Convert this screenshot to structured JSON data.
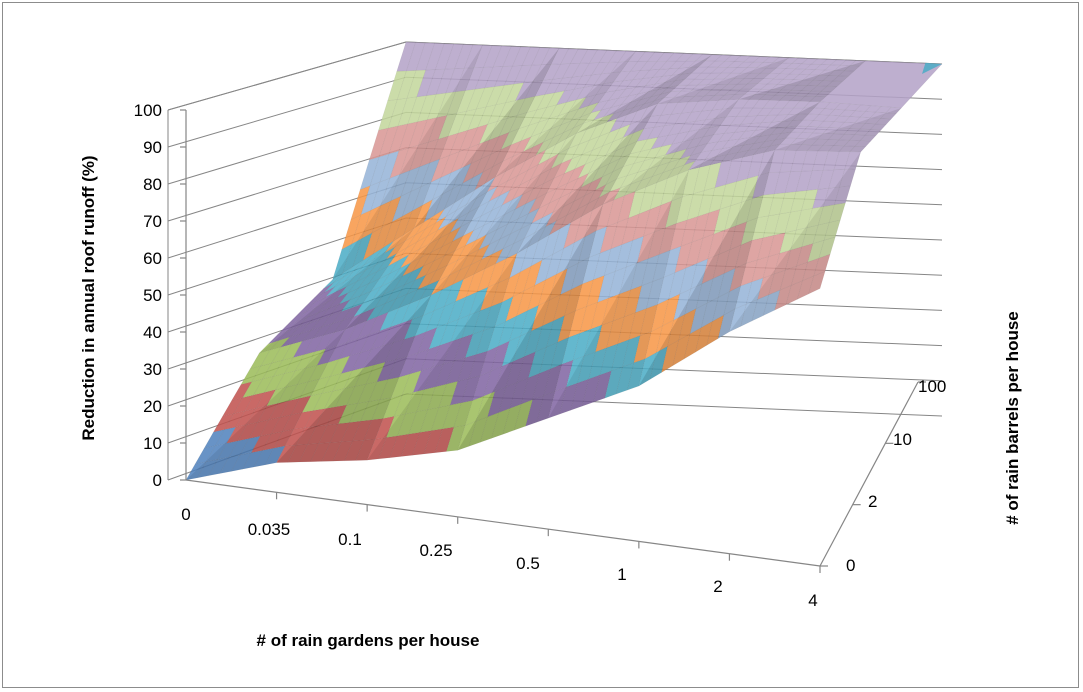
{
  "chart_data": {
    "type": "surface",
    "title": "",
    "xlabel": "# of rain gardens per house",
    "ylabel": "Reduction in annual roof runoff (%)",
    "zlabel": "# of rain barrels per house",
    "x_categories": [
      "0",
      "0.035",
      "0.1",
      "0.25",
      "0.5",
      "1",
      "2",
      "4"
    ],
    "y_categories": [
      "0",
      "2",
      "10",
      "100"
    ],
    "z_ticks": [
      "0",
      "10",
      "20",
      "30",
      "40",
      "50",
      "60",
      "70",
      "80",
      "90",
      "100"
    ],
    "zlim": [
      0,
      100
    ],
    "series_rows": [
      "0",
      "2",
      "10",
      "100"
    ],
    "values": [
      [
        0,
        8,
        12,
        18,
        30,
        42,
        60,
        75
      ],
      [
        27,
        36,
        48,
        62,
        78,
        90,
        98,
        100
      ],
      [
        40,
        56,
        72,
        86,
        96,
        99,
        100,
        100
      ],
      [
        100,
        100,
        100,
        100,
        100,
        100,
        100,
        100
      ]
    ],
    "band_colors": [
      "#4f81bd",
      "#c0504d",
      "#9bbb59",
      "#8064a2",
      "#4bacc6",
      "#f79646",
      "#95b3d7",
      "#d99694",
      "#c3d69b",
      "#b3a2c7"
    ],
    "top_color": "#4bacc6",
    "grid": true
  }
}
